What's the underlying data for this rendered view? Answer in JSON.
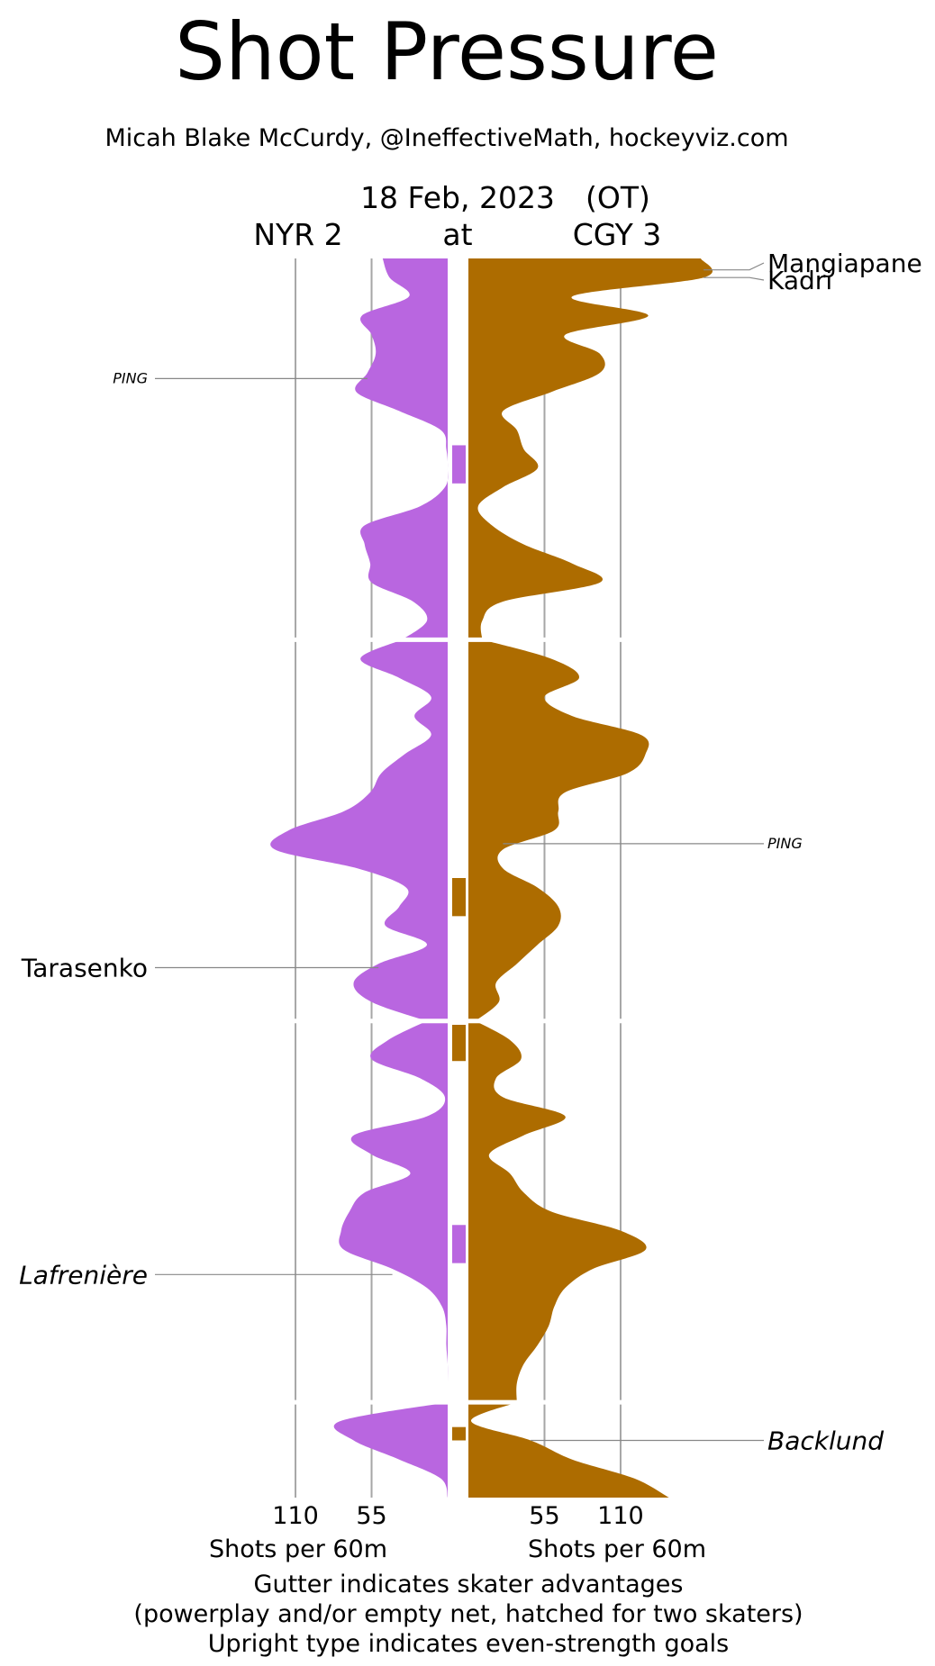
{
  "chart_data": {
    "type": "area",
    "title": "Shot Pressure",
    "subtitle": "Micah Blake McCurdy, @IneffectiveMath, hockeyviz.com",
    "date": "18 Feb, 2023",
    "ot_label": "(OT)",
    "at_label": "at",
    "away": {
      "label": "NYR 2",
      "color": "#b966e0"
    },
    "home": {
      "label": "CGY 3",
      "color": "#ad6c00"
    },
    "xlabel": "Shots per 60m",
    "x_ticks": [
      55,
      110
    ],
    "x_max_display": 170,
    "time_range_min": [
      0,
      65
    ],
    "periods": [
      [
        0,
        20
      ],
      [
        20,
        40
      ],
      [
        40,
        60
      ],
      [
        60,
        65
      ]
    ],
    "footer": [
      "Gutter indicates skater advantages",
      "(powerplay and/or empty net, hatched for two skaters)",
      "Upright type indicates even-strength goals"
    ],
    "series": [
      {
        "name": "NYR",
        "side": "away",
        "points": [
          [
            0,
            47
          ],
          [
            1,
            42
          ],
          [
            2,
            28
          ],
          [
            3,
            62
          ],
          [
            4,
            55
          ],
          [
            5,
            52
          ],
          [
            6,
            58
          ],
          [
            7,
            66
          ],
          [
            8,
            35
          ],
          [
            9,
            5
          ],
          [
            10,
            1
          ],
          [
            11,
            0
          ],
          [
            12,
            2
          ],
          [
            13,
            20
          ],
          [
            14,
            60
          ],
          [
            15,
            60
          ],
          [
            16,
            56
          ],
          [
            17,
            55
          ],
          [
            18,
            25
          ],
          [
            19,
            15
          ],
          [
            20,
            33
          ],
          [
            21,
            63
          ],
          [
            22,
            35
          ],
          [
            23,
            12
          ],
          [
            24,
            24
          ],
          [
            25,
            12
          ],
          [
            26,
            31
          ],
          [
            27,
            48
          ],
          [
            28,
            56
          ],
          [
            29,
            75
          ],
          [
            30,
            115
          ],
          [
            31,
            125
          ],
          [
            32,
            65
          ],
          [
            33,
            30
          ],
          [
            34,
            35
          ],
          [
            35,
            45
          ],
          [
            36,
            15
          ],
          [
            37,
            50
          ],
          [
            38,
            68
          ],
          [
            39,
            55
          ],
          [
            40,
            15
          ],
          [
            41,
            43
          ],
          [
            42,
            55
          ],
          [
            43,
            20
          ],
          [
            44,
            2
          ],
          [
            45,
            15
          ],
          [
            46,
            68
          ],
          [
            47,
            55
          ],
          [
            48,
            27
          ],
          [
            49,
            60
          ],
          [
            50,
            71
          ],
          [
            51,
            77
          ],
          [
            52,
            75
          ],
          [
            53,
            40
          ],
          [
            54,
            15
          ],
          [
            55,
            4
          ],
          [
            56,
            1
          ],
          [
            57,
            1
          ],
          [
            58,
            0
          ],
          [
            59,
            0
          ],
          [
            60,
            0
          ],
          [
            61,
            78
          ],
          [
            62,
            68
          ],
          [
            63,
            35
          ],
          [
            64,
            5
          ],
          [
            65,
            0
          ]
        ]
      },
      {
        "name": "CGY",
        "side": "home",
        "points": [
          [
            0,
            168
          ],
          [
            1,
            170
          ],
          [
            2,
            75
          ],
          [
            3,
            130
          ],
          [
            4,
            70
          ],
          [
            5,
            95
          ],
          [
            6,
            95
          ],
          [
            7,
            60
          ],
          [
            8,
            25
          ],
          [
            9,
            35
          ],
          [
            10,
            40
          ],
          [
            11,
            50
          ],
          [
            12,
            25
          ],
          [
            13,
            7
          ],
          [
            14,
            17
          ],
          [
            15,
            40
          ],
          [
            16,
            75
          ],
          [
            17,
            95
          ],
          [
            18,
            25
          ],
          [
            19,
            10
          ],
          [
            20,
            10
          ],
          [
            21,
            60
          ],
          [
            22,
            80
          ],
          [
            23,
            55
          ],
          [
            24,
            75
          ],
          [
            25,
            125
          ],
          [
            26,
            128
          ],
          [
            27,
            115
          ],
          [
            28,
            70
          ],
          [
            29,
            65
          ],
          [
            30,
            62
          ],
          [
            31,
            25
          ],
          [
            32,
            25
          ],
          [
            33,
            50
          ],
          [
            34,
            65
          ],
          [
            35,
            65
          ],
          [
            36,
            50
          ],
          [
            37,
            35
          ],
          [
            38,
            20
          ],
          [
            39,
            22
          ],
          [
            40,
            5
          ],
          [
            41,
            30
          ],
          [
            42,
            38
          ],
          [
            43,
            20
          ],
          [
            44,
            25
          ],
          [
            45,
            70
          ],
          [
            46,
            40
          ],
          [
            47,
            15
          ],
          [
            48,
            30
          ],
          [
            49,
            40
          ],
          [
            50,
            60
          ],
          [
            51,
            110
          ],
          [
            52,
            128
          ],
          [
            53,
            90
          ],
          [
            54,
            70
          ],
          [
            55,
            62
          ],
          [
            56,
            58
          ],
          [
            57,
            50
          ],
          [
            58,
            40
          ],
          [
            59,
            35
          ],
          [
            60,
            35
          ],
          [
            61,
            2
          ],
          [
            62,
            45
          ],
          [
            63,
            75
          ],
          [
            64,
            120
          ],
          [
            65,
            145
          ]
        ]
      }
    ],
    "advantages": [
      {
        "team": "NYR",
        "start": 9.8,
        "end": 11.8
      },
      {
        "team": "CGY",
        "start": 32.5,
        "end": 34.5
      },
      {
        "team": "CGY",
        "start": 40.2,
        "end": 42.1
      },
      {
        "team": "NYR",
        "start": 50.7,
        "end": 52.7
      },
      {
        "team": "CGY",
        "start": 61.3,
        "end": 62.0
      }
    ],
    "goals": [
      {
        "team": "NYR",
        "player": "PING",
        "time": 6.3,
        "style": "small-italic"
      },
      {
        "team": "NYR",
        "player": "Tarasenko",
        "time": 37.2,
        "style": "upright"
      },
      {
        "team": "NYR",
        "player": "Lafrenière",
        "time": 53.3,
        "style": "italic"
      },
      {
        "team": "CGY",
        "player": "Mangiapane",
        "time": 0.6,
        "style": "upright"
      },
      {
        "team": "CGY",
        "player": "Kadri",
        "time": 1.0,
        "style": "upright"
      },
      {
        "team": "CGY",
        "player": "PING",
        "time": 30.7,
        "style": "small-italic"
      },
      {
        "team": "CGY",
        "player": "Backlund",
        "time": 62.0,
        "style": "italic"
      }
    ]
  }
}
